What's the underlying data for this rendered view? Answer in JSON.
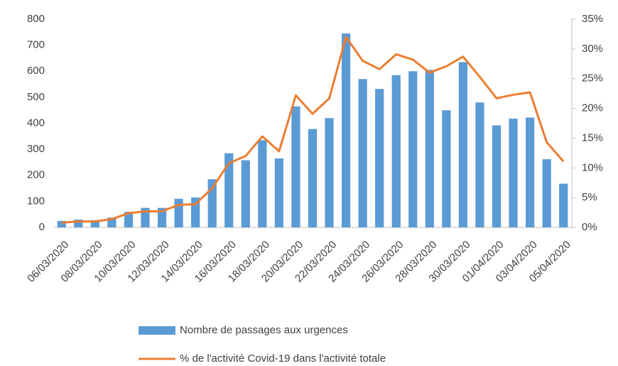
{
  "chart_data": {
    "type": "bar",
    "categories": [
      "06/03/2020",
      null,
      "08/03/2020",
      null,
      "10/03/2020",
      null,
      "12/03/2020",
      null,
      "14/03/2020",
      null,
      "16/03/2020",
      null,
      "18/03/2020",
      null,
      "20/03/2020",
      null,
      "22/03/2020",
      null,
      "24/03/2020",
      null,
      "26/03/2020",
      null,
      "28/03/2020",
      null,
      "30/03/2020",
      null,
      "01/04/2020",
      null,
      "03/04/2020",
      null,
      "05/04/2020"
    ],
    "series": [
      {
        "name": "Nombre de passages aux urgences",
        "type": "bar",
        "color": "#5b9bd5",
        "values": [
          25,
          30,
          28,
          38,
          60,
          75,
          75,
          110,
          115,
          185,
          285,
          258,
          335,
          265,
          465,
          378,
          420,
          745,
          570,
          532,
          585,
          600,
          605,
          450,
          635,
          480,
          392,
          418,
          422,
          262,
          168
        ]
      },
      {
        "name": "% de l'activité Covid-19 dans l'activité totale",
        "type": "line",
        "color": "#ed7d31",
        "axis": "y2",
        "values": [
          0.8,
          1,
          1,
          1.4,
          2.4,
          2.7,
          2.7,
          3.8,
          3.9,
          6.6,
          10.8,
          12,
          15.3,
          12.8,
          22.2,
          19.1,
          21.7,
          32,
          28,
          26.6,
          29.1,
          28.2,
          26,
          27.1,
          28.7,
          25.3,
          21.7,
          22.3,
          22.7,
          14.3,
          11.1
        ]
      }
    ],
    "ylim": [
      0,
      800
    ],
    "yticks": [
      0,
      100,
      200,
      300,
      400,
      500,
      600,
      700,
      800
    ],
    "y2lim": [
      0,
      35
    ],
    "y2ticks": [
      {
        "value": 0,
        "label": "0%"
      },
      {
        "value": 5,
        "label": "5%"
      },
      {
        "value": 10,
        "label": "10%"
      },
      {
        "value": 15,
        "label": "15%"
      },
      {
        "value": 20,
        "label": "20%"
      },
      {
        "value": 25,
        "label": "25%"
      },
      {
        "value": 30,
        "label": "30%"
      },
      {
        "value": 35,
        "label": "35%"
      }
    ],
    "legend": "bottom"
  }
}
